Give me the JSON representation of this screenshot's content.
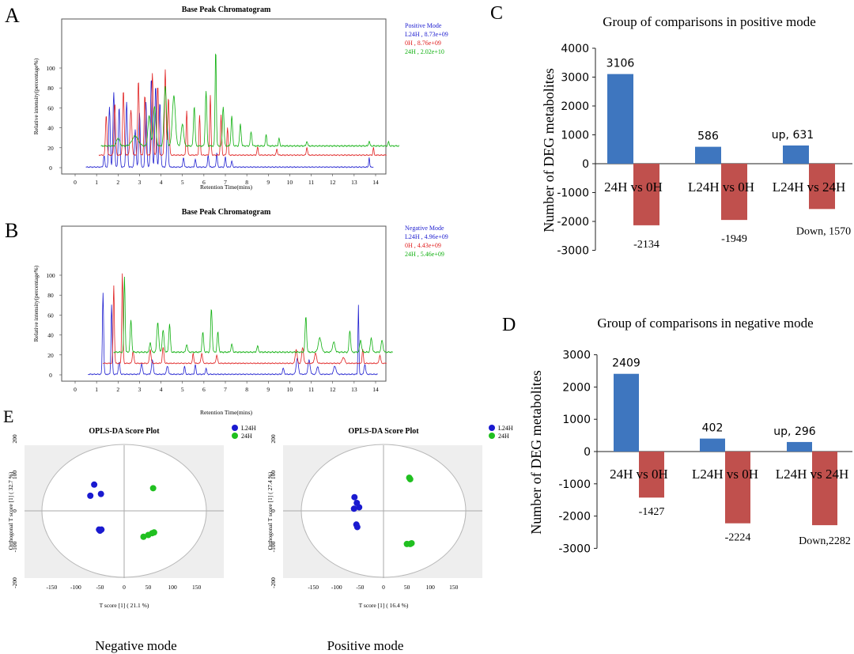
{
  "panels": {
    "A": {
      "letter": "A",
      "title": "Base Peak Chromatogram",
      "ylabel": "Relative intensity(percentage%)",
      "xlabel": "Retention Time(mins)",
      "legend_title": "Positive Mode",
      "legend": [
        {
          "text": "L24H , 8.73e+09",
          "color": "#2020d0"
        },
        {
          "text": "0H , 8.76e+09",
          "color": "#e02020"
        },
        {
          "text": "24H , 2.02e+10",
          "color": "#10b010"
        }
      ],
      "yticks": [
        "0",
        "20",
        "40",
        "60",
        "80",
        "100"
      ],
      "xticks": [
        "0",
        "1",
        "2",
        "3",
        "4",
        "5",
        "6",
        "7",
        "8",
        "9",
        "10",
        "11",
        "12",
        "13",
        "14"
      ]
    },
    "B": {
      "letter": "B",
      "title": "Base Peak Chromatogram",
      "ylabel": "Relative intensity(percentage%)",
      "xlabel": "Retention Time(mins)",
      "legend_title": "Negative Mode",
      "legend": [
        {
          "text": "L24H , 4.96e+09",
          "color": "#2020d0"
        },
        {
          "text": "0H , 4.43e+09",
          "color": "#e02020"
        },
        {
          "text": "24H , 5.46e+09",
          "color": "#10b010"
        }
      ],
      "yticks": [
        "0",
        "20",
        "40",
        "60",
        "80",
        "100"
      ],
      "xticks": [
        "0",
        "1",
        "2",
        "3",
        "4",
        "5",
        "6",
        "7",
        "8",
        "9",
        "10",
        "11",
        "12",
        "13",
        "14"
      ]
    },
    "C": {
      "letter": "C",
      "title": "Group of comparisons in positive  mode",
      "ylabel": "Number of DEG metabolites",
      "yticks": [
        "4000",
        "3000",
        "2000",
        "1000",
        "0",
        "-1000",
        "-2000",
        "-3000"
      ],
      "bar_labels_up": [
        "3106",
        "586",
        "up, 631"
      ],
      "bar_labels_down": [
        "-2134",
        "-1949",
        "Down, 1570"
      ],
      "categories": [
        "24H vs 0H",
        "L24H vs 0H",
        "L24H vs 24H"
      ]
    },
    "D": {
      "letter": "D",
      "title": "Group of comparisons in negative mode",
      "ylabel": "Number of DEG metabolites",
      "yticks": [
        "3000",
        "2000",
        "1000",
        "0",
        "-1000",
        "-2000",
        "-3000"
      ],
      "bar_labels_up": [
        "2409",
        "402",
        "up, 296"
      ],
      "bar_labels_down": [
        "-1427",
        "-2224",
        "Down,2282"
      ],
      "categories": [
        "24H vs 0H",
        "L24H vs 0H",
        "L24H vs 24H"
      ]
    },
    "E": {
      "letter": "E",
      "legend": [
        {
          "text": "L24H",
          "color": "#1a1ad0"
        },
        {
          "text": "24H",
          "color": "#20c020"
        }
      ],
      "plots": [
        {
          "title": "OPLS-DA Score Plot",
          "xlabel": "T score [1] ( 21.1 %)",
          "ylabel": "Orthogonal T score [1] ( 32.7 %)",
          "caption": "Negative mode",
          "xticks": [
            "-150",
            "-100",
            "-50",
            "0",
            "50",
            "100",
            "150"
          ],
          "yticks": [
            "200",
            "100",
            "0",
            "-100",
            "-200"
          ]
        },
        {
          "title": "OPLS-DA Score Plot",
          "xlabel": "T score [1] ( 16.4 %)",
          "ylabel": "Orthogonal T score [1] ( 27.4 %)",
          "caption": "Positive mode",
          "xticks": [
            "-150",
            "-100",
            "-50",
            "0",
            "50",
            "100",
            "150"
          ],
          "yticks": [
            "200",
            "100",
            "0",
            "-100",
            "-200"
          ]
        }
      ]
    }
  },
  "chart_data": [
    {
      "type": "bar",
      "panel": "C",
      "title": "Group of comparisons in positive  mode",
      "ylabel": "Number of DEG metabolites",
      "categories": [
        "24H vs 0H",
        "L24H vs 0H",
        "L24H vs 24H"
      ],
      "series": [
        {
          "name": "up",
          "color": "#3e76bf",
          "values": [
            3106,
            586,
            631
          ]
        },
        {
          "name": "down",
          "color": "#c0504d",
          "values": [
            -2134,
            -1949,
            -1570
          ]
        }
      ],
      "ylim": [
        -3000,
        4000
      ]
    },
    {
      "type": "bar",
      "panel": "D",
      "title": "Group of comparisons in negative mode",
      "ylabel": "Number of DEG metabolites",
      "categories": [
        "24H vs 0H",
        "L24H vs 0H",
        "L24H vs 24H"
      ],
      "series": [
        {
          "name": "up",
          "color": "#3e76bf",
          "values": [
            2409,
            402,
            296
          ]
        },
        {
          "name": "down",
          "color": "#c0504d",
          "values": [
            -1427,
            -2224,
            -2282
          ]
        }
      ],
      "ylim": [
        -3000,
        3000
      ]
    },
    {
      "type": "scatter",
      "panel": "E-negative",
      "title": "OPLS-DA Score Plot",
      "xlim": [
        -175,
        175
      ],
      "ylim": [
        -200,
        200
      ],
      "series": [
        {
          "name": "L24H",
          "color": "#1a1ad0",
          "points": [
            [
              -62,
              73
            ],
            [
              -48,
              47
            ],
            [
              -70,
              42
            ],
            [
              -52,
              -52
            ],
            [
              -47,
              -52
            ],
            [
              -50,
              -55
            ]
          ]
        },
        {
          "name": "24H",
          "color": "#20c020",
          "points": [
            [
              60,
              63
            ],
            [
              40,
              -72
            ],
            [
              50,
              -67
            ],
            [
              58,
              -62
            ],
            [
              62,
              -60
            ]
          ]
        }
      ]
    },
    {
      "type": "scatter",
      "panel": "E-positive",
      "title": "OPLS-DA Score Plot",
      "xlim": [
        -175,
        175
      ],
      "ylim": [
        -200,
        200
      ],
      "series": [
        {
          "name": "L24H",
          "color": "#1a1ad0",
          "points": [
            [
              -62,
              38
            ],
            [
              -57,
              22
            ],
            [
              -52,
              10
            ],
            [
              -63,
              6
            ],
            [
              -58,
              -38
            ],
            [
              -56,
              -45
            ]
          ]
        },
        {
          "name": "24H",
          "color": "#20c020",
          "points": [
            [
              55,
              92
            ],
            [
              57,
              88
            ],
            [
              50,
              -92
            ],
            [
              57,
              -92
            ],
            [
              60,
              -90
            ]
          ]
        }
      ]
    }
  ]
}
